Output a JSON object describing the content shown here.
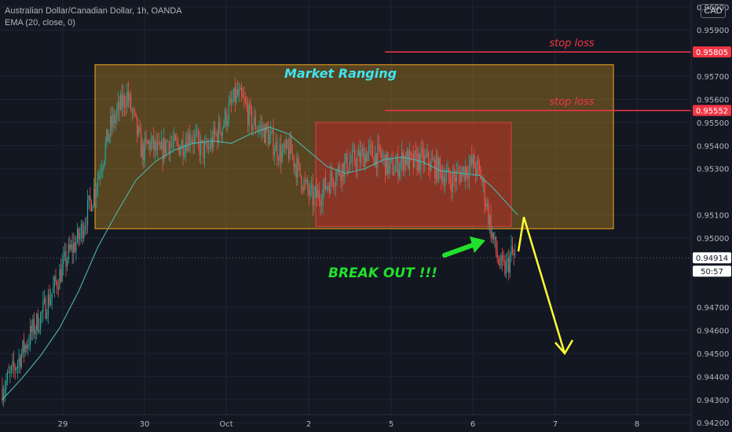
{
  "header": {
    "symbol": "Australian Dollar/Canadian Dollar, 1h, OANDA",
    "indicator": "EMA (20, close, 0)",
    "currency": "CAD"
  },
  "colors": {
    "background": "#131722",
    "bull": "#26a69a",
    "bear": "#ef5350",
    "ema": "#4db6ac",
    "range_box_fill": "#c98d1f",
    "range_box_border": "#f5a623",
    "inner_box_fill": "#b02a2a",
    "stop_loss": "#f23645",
    "breakout_text": "#22e12c",
    "arrow": "#ffff33",
    "axis_text": "#b2b5be"
  },
  "chart_data": {
    "type": "candlestick",
    "x_ticks": [
      "29",
      "30",
      "Oct",
      "2",
      "5",
      "6",
      "7",
      "8"
    ],
    "y_ticks": [
      "0.96000",
      "0.95900",
      "0.95700",
      "0.95600",
      "0.95500",
      "0.95400",
      "0.95300",
      "0.95100",
      "0.95000",
      "0.94700",
      "0.94600",
      "0.94500",
      "0.94400",
      "0.94300",
      "0.94200"
    ],
    "y_range": [
      0.9416,
      0.9603
    ],
    "price_labels": [
      {
        "value": "0.95805",
        "kind": "stop"
      },
      {
        "value": "0.95552",
        "kind": "stop"
      },
      {
        "value": "0.94914",
        "kind": "current"
      },
      {
        "value": "50:57",
        "kind": "countdown"
      }
    ],
    "current_price": 0.94914,
    "annotations": {
      "range_box": {
        "label": "Market Ranging",
        "from": "09-29",
        "to": "10-07",
        "top": 0.9575,
        "bottom": 0.9504
      },
      "inner_box": {
        "from": "10-02",
        "to": "10-06",
        "top": 0.955,
        "bottom": 0.9505
      },
      "stop_loss_1": {
        "label": "stop loss",
        "value": 0.95805
      },
      "stop_loss_2": {
        "label": "stop loss",
        "value": 0.95552
      },
      "breakout": {
        "label": "BREAK OUT !!!"
      },
      "projection": {
        "from": 0.9509,
        "to": 0.945
      }
    },
    "ema_key": [
      [
        0,
        0.943
      ],
      [
        15,
        0.9439
      ],
      [
        30,
        0.9449
      ],
      [
        45,
        0.9461
      ],
      [
        60,
        0.9477
      ],
      [
        75,
        0.9496
      ],
      [
        90,
        0.9511
      ],
      [
        105,
        0.9525
      ],
      [
        120,
        0.9533
      ],
      [
        135,
        0.9538
      ],
      [
        150,
        0.9541
      ],
      [
        165,
        0.9542
      ],
      [
        180,
        0.9541
      ],
      [
        195,
        0.9545
      ],
      [
        210,
        0.9548
      ],
      [
        225,
        0.9545
      ],
      [
        240,
        0.9538
      ],
      [
        255,
        0.9531
      ],
      [
        270,
        0.9528
      ],
      [
        285,
        0.953
      ],
      [
        300,
        0.9534
      ],
      [
        315,
        0.9535
      ],
      [
        330,
        0.9533
      ],
      [
        345,
        0.9529
      ],
      [
        360,
        0.9528
      ],
      [
        375,
        0.9527
      ],
      [
        385,
        0.9522
      ],
      [
        395,
        0.9516
      ],
      [
        405,
        0.951
      ]
    ],
    "close_key": [
      [
        0,
        0.9435
      ],
      [
        8,
        0.9442
      ],
      [
        15,
        0.945
      ],
      [
        22,
        0.9458
      ],
      [
        30,
        0.9466
      ],
      [
        38,
        0.9475
      ],
      [
        45,
        0.9484
      ],
      [
        52,
        0.9493
      ],
      [
        60,
        0.95
      ],
      [
        66,
        0.951
      ],
      [
        72,
        0.952
      ],
      [
        78,
        0.9533
      ],
      [
        85,
        0.9548
      ],
      [
        92,
        0.9556
      ],
      [
        98,
        0.9562
      ],
      [
        104,
        0.955
      ],
      [
        110,
        0.9537
      ],
      [
        116,
        0.9541
      ],
      [
        124,
        0.9536
      ],
      [
        130,
        0.9542
      ],
      [
        136,
        0.9539
      ],
      [
        142,
        0.9541
      ],
      [
        148,
        0.9545
      ],
      [
        154,
        0.954
      ],
      [
        160,
        0.9537
      ],
      [
        166,
        0.9543
      ],
      [
        172,
        0.9548
      ],
      [
        178,
        0.9555
      ],
      [
        184,
        0.9562
      ],
      [
        190,
        0.9558
      ],
      [
        196,
        0.955
      ],
      [
        202,
        0.9548
      ],
      [
        208,
        0.9545
      ],
      [
        214,
        0.954
      ],
      [
        220,
        0.9536
      ],
      [
        226,
        0.9538
      ],
      [
        232,
        0.953
      ],
      [
        238,
        0.9522
      ],
      [
        244,
        0.9517
      ],
      [
        250,
        0.9519
      ],
      [
        256,
        0.9524
      ],
      [
        262,
        0.9528
      ],
      [
        268,
        0.9531
      ],
      [
        274,
        0.9533
      ],
      [
        280,
        0.9534
      ],
      [
        286,
        0.9537
      ],
      [
        292,
        0.9536
      ],
      [
        298,
        0.9535
      ],
      [
        304,
        0.953
      ],
      [
        310,
        0.9531
      ],
      [
        316,
        0.9535
      ],
      [
        322,
        0.9532
      ],
      [
        328,
        0.9534
      ],
      [
        334,
        0.9533
      ],
      [
        340,
        0.9531
      ],
      [
        346,
        0.9528
      ],
      [
        352,
        0.9525
      ],
      [
        358,
        0.9527
      ],
      [
        364,
        0.953
      ],
      [
        370,
        0.9532
      ],
      [
        376,
        0.9527
      ],
      [
        380,
        0.9516
      ],
      [
        384,
        0.9504
      ],
      [
        387,
        0.9496
      ],
      [
        390,
        0.949
      ],
      [
        393,
        0.9486
      ],
      [
        397,
        0.9488
      ],
      [
        400,
        0.9493
      ],
      [
        403,
        0.9491
      ]
    ]
  }
}
